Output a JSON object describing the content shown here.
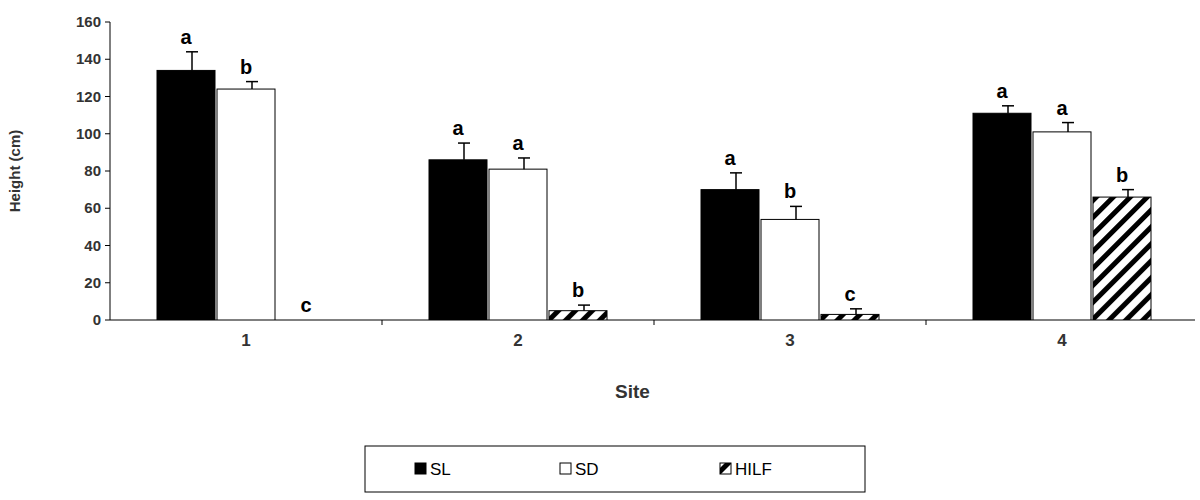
{
  "chart_data": {
    "type": "bar",
    "x_label": "Site",
    "y_label": "Height (cm)",
    "categories": [
      "1",
      "2",
      "3",
      "4"
    ],
    "ylim": [
      0,
      160
    ],
    "yticks": [
      0,
      20,
      40,
      60,
      80,
      100,
      120,
      140,
      160
    ],
    "grid": false,
    "legend": "bottom",
    "series": [
      {
        "name": "SL",
        "color": "#000000",
        "values": [
          134,
          86,
          70,
          111
        ],
        "error": [
          10,
          9,
          9,
          4
        ],
        "letters": [
          "a",
          "a",
          "a",
          "a"
        ]
      },
      {
        "name": "SD",
        "color": "#ffffff",
        "values": [
          124,
          81,
          54,
          101
        ],
        "error": [
          4,
          6,
          7,
          5
        ],
        "letters": [
          "b",
          "a",
          "b",
          "a"
        ]
      },
      {
        "name": "HILF",
        "color": "#000000",
        "values": [
          0,
          5,
          3,
          66
        ],
        "error": [
          null,
          3,
          3,
          4
        ],
        "letters": [
          "c",
          "b",
          "c",
          "b"
        ]
      }
    ]
  }
}
